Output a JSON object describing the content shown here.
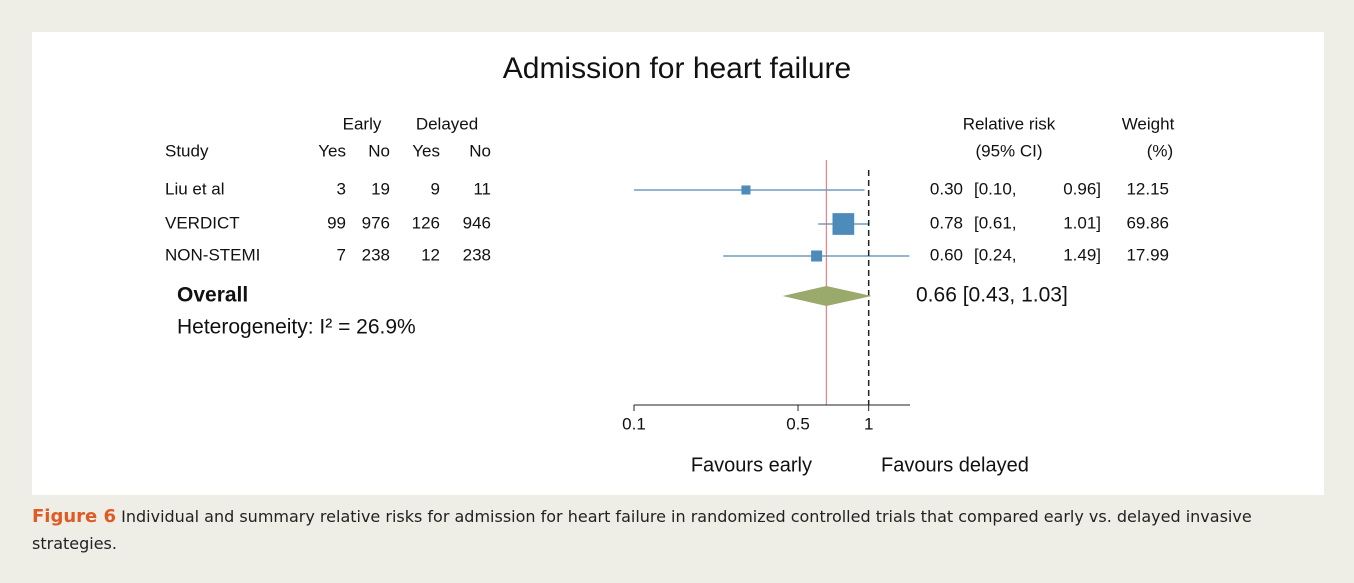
{
  "chart_data": {
    "type": "forest",
    "title": "Admission for heart failure",
    "column_headers": {
      "study": "Study",
      "early": "Early",
      "delayed": "Delayed",
      "yes": "Yes",
      "no": "No",
      "rr": "Relative risk",
      "ci": "(95% CI)",
      "weight": "Weight",
      "weight_unit": "(%)"
    },
    "studies": [
      "Liu et al",
      "VERDICT",
      "NON-STEMI"
    ],
    "early_yes": [
      3,
      99,
      7
    ],
    "early_no": [
      19,
      976,
      238
    ],
    "delayed_yes": [
      9,
      126,
      12
    ],
    "delayed_no": [
      11,
      946,
      238
    ],
    "rr": [
      0.3,
      0.78,
      0.6
    ],
    "rr_labels": [
      "0.30",
      "0.78",
      "0.60"
    ],
    "ci_low": [
      0.1,
      0.61,
      0.24
    ],
    "ci_low_labels": [
      "[0.10,",
      "[0.61,",
      "[0.24,"
    ],
    "ci_high": [
      0.96,
      1.01,
      1.49
    ],
    "ci_high_labels": [
      "0.96]",
      "1.01]",
      "1.49]"
    ],
    "weights": [
      12.15,
      69.86,
      17.99
    ],
    "overall": {
      "name": "Overall",
      "rr": 0.66,
      "ci_low": 0.43,
      "ci_high": 1.03,
      "label": "0.66 [0.43, 1.03]"
    },
    "heterogeneity": "Heterogeneity: I² = 26.9%",
    "xlabel_left": "Favours early",
    "xlabel_right": "Favours delayed",
    "xscale": "log",
    "xlim": [
      0.1,
      1.5
    ],
    "xticks": [
      0.1,
      0.5,
      1
    ],
    "color": "#4d8bb8",
    "diamond_color": "#9aa96c",
    "overall_line_color": "#e8686a"
  },
  "caption": {
    "label": "Figure 6",
    "text": "Individual and summary relative risks for admission for heart failure in randomized controlled trials that compared early vs. delayed invasive strategies."
  }
}
